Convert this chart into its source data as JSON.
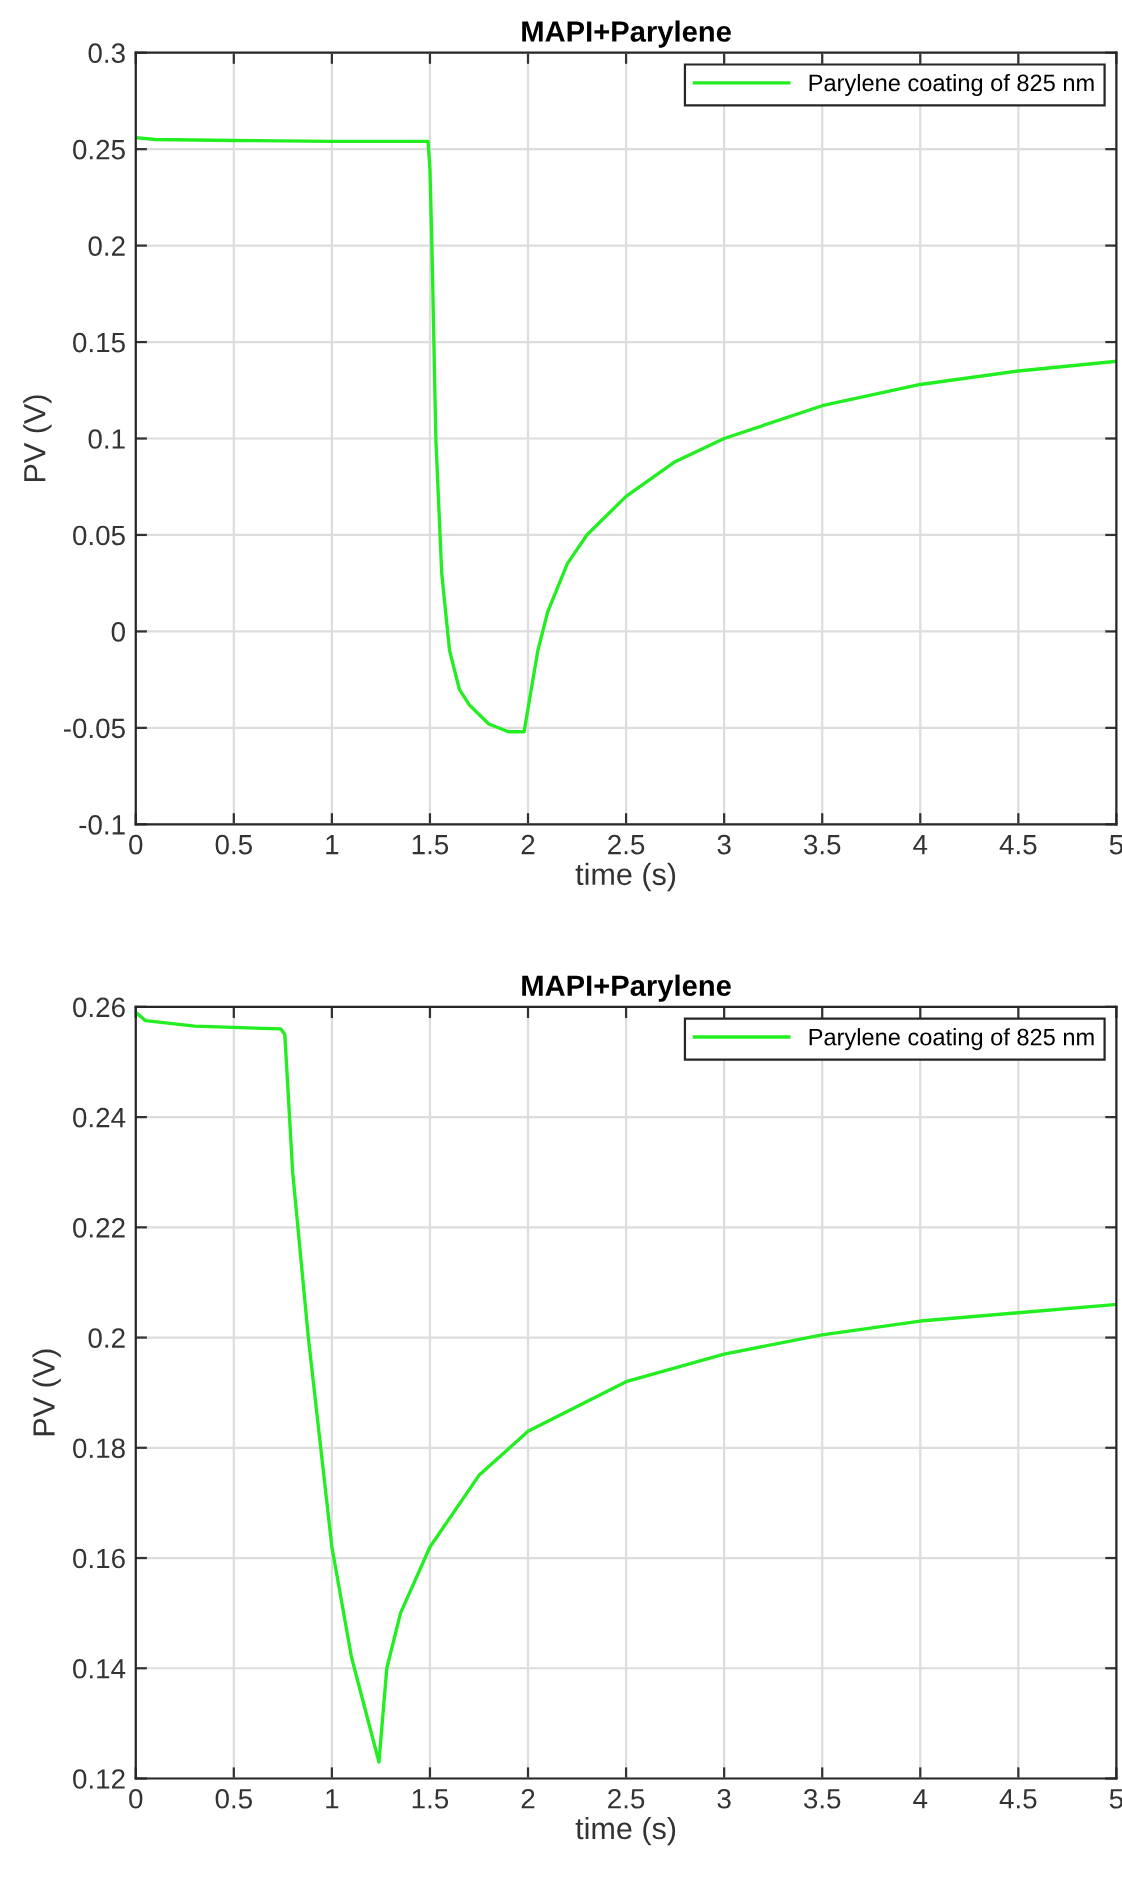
{
  "chart_data": [
    {
      "type": "line",
      "title": "MAPI+Parylene",
      "xlabel": "time (s)",
      "ylabel": "PV (V)",
      "xlim": [
        0,
        5
      ],
      "ylim": [
        -0.1,
        0.3
      ],
      "xticks": [
        0,
        0.5,
        1,
        1.5,
        2,
        2.5,
        3,
        3.5,
        4,
        4.5,
        5
      ],
      "yticks": [
        -0.1,
        -0.05,
        0,
        0.05,
        0.1,
        0.15,
        0.2,
        0.25,
        0.3
      ],
      "grid": true,
      "legend": "top right",
      "series": [
        {
          "name": "Parylene coating of 825 nm",
          "color": "#22ee22",
          "x": [
            0,
            0.1,
            0.5,
            1.0,
            1.49,
            1.5,
            1.51,
            1.53,
            1.56,
            1.6,
            1.65,
            1.7,
            1.8,
            1.9,
            1.98,
            2.0,
            2.05,
            2.1,
            2.2,
            2.3,
            2.5,
            2.75,
            3.0,
            3.5,
            4.0,
            4.5,
            5.0
          ],
          "values": [
            0.256,
            0.255,
            0.2545,
            0.254,
            0.254,
            0.24,
            0.2,
            0.1,
            0.03,
            -0.01,
            -0.03,
            -0.038,
            -0.048,
            -0.052,
            -0.052,
            -0.04,
            -0.01,
            0.01,
            0.035,
            0.05,
            0.07,
            0.088,
            0.1,
            0.117,
            0.128,
            0.135,
            0.14
          ]
        }
      ]
    },
    {
      "type": "line",
      "title": "MAPI+Parylene",
      "xlabel": "time (s)",
      "ylabel": "PV (V)",
      "xlim": [
        0,
        5
      ],
      "ylim": [
        0.12,
        0.26
      ],
      "xticks": [
        0,
        0.5,
        1,
        1.5,
        2,
        2.5,
        3,
        3.5,
        4,
        4.5,
        5
      ],
      "yticks": [
        0.12,
        0.14,
        0.16,
        0.18,
        0.2,
        0.22,
        0.24,
        0.26
      ],
      "grid": true,
      "legend": "top right",
      "series": [
        {
          "name": "Parylene coating of 825 nm",
          "color": "#22ee22",
          "x": [
            0,
            0.05,
            0.3,
            0.74,
            0.76,
            0.8,
            0.88,
            1.0,
            1.1,
            1.24,
            1.28,
            1.35,
            1.5,
            1.75,
            2.0,
            2.5,
            3.0,
            3.5,
            4.0,
            4.5,
            5.0
          ],
          "values": [
            0.259,
            0.2575,
            0.2565,
            0.256,
            0.255,
            0.23,
            0.2,
            0.162,
            0.142,
            0.123,
            0.14,
            0.15,
            0.162,
            0.175,
            0.183,
            0.192,
            0.197,
            0.2005,
            0.203,
            0.2045,
            0.206
          ]
        }
      ]
    }
  ]
}
